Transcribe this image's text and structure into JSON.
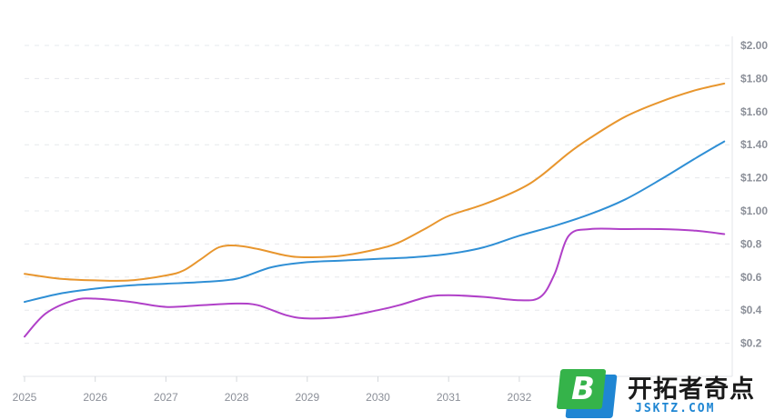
{
  "chart_data": {
    "type": "line",
    "title": "",
    "xlabel": "",
    "ylabel": "",
    "x_ticks": [
      "2025",
      "2026",
      "2027",
      "2028",
      "2029",
      "2030",
      "2031",
      "2032"
    ],
    "xlim": [
      2025,
      2034.9
    ],
    "y_ticks": [
      "$2.00",
      "$1.80",
      "$1.60",
      "$1.40",
      "$1.20",
      "$1.00",
      "$0.8",
      "$0.6",
      "$0.4",
      "$0.2"
    ],
    "ylim": [
      0.0,
      2.0
    ],
    "y_axis_position": "right",
    "grid": "horizontal-dashed",
    "legend": "none",
    "series": [
      {
        "color": "#e8962e",
        "x": [
          2025.0,
          2025.5,
          2026.0,
          2026.5,
          2027.0,
          2027.25,
          2027.5,
          2027.75,
          2028.0,
          2028.3,
          2028.7,
          2029.0,
          2029.5,
          2030.0,
          2030.3,
          2030.7,
          2031.0,
          2031.5,
          2032.0,
          2032.3,
          2032.7,
          2033.0,
          2033.5,
          2034.0,
          2034.5,
          2034.9
        ],
        "values": [
          0.62,
          0.59,
          0.58,
          0.58,
          0.61,
          0.64,
          0.71,
          0.78,
          0.79,
          0.77,
          0.73,
          0.72,
          0.73,
          0.77,
          0.81,
          0.9,
          0.97,
          1.04,
          1.13,
          1.21,
          1.35,
          1.44,
          1.57,
          1.66,
          1.73,
          1.77
        ]
      },
      {
        "color": "#2f8fd5",
        "x": [
          2025.0,
          2025.5,
          2026.0,
          2026.5,
          2027.0,
          2027.5,
          2028.0,
          2028.5,
          2029.0,
          2029.5,
          2030.0,
          2030.5,
          2031.0,
          2031.5,
          2032.0,
          2032.5,
          2033.0,
          2033.5,
          2034.0,
          2034.5,
          2034.9
        ],
        "values": [
          0.45,
          0.5,
          0.53,
          0.55,
          0.56,
          0.57,
          0.59,
          0.66,
          0.69,
          0.7,
          0.71,
          0.72,
          0.74,
          0.78,
          0.85,
          0.91,
          0.98,
          1.07,
          1.19,
          1.32,
          1.42
        ]
      },
      {
        "color": "#b040c8",
        "x": [
          2025.0,
          2025.3,
          2025.7,
          2026.0,
          2026.5,
          2027.0,
          2027.5,
          2028.0,
          2028.3,
          2028.7,
          2029.0,
          2029.5,
          2030.0,
          2030.3,
          2030.7,
          2031.0,
          2031.5,
          2032.0,
          2032.3,
          2032.5,
          2032.7,
          2033.0,
          2033.5,
          2034.0,
          2034.5,
          2034.9
        ],
        "values": [
          0.24,
          0.38,
          0.46,
          0.47,
          0.45,
          0.42,
          0.43,
          0.44,
          0.43,
          0.37,
          0.35,
          0.36,
          0.4,
          0.43,
          0.48,
          0.49,
          0.48,
          0.46,
          0.48,
          0.62,
          0.85,
          0.89,
          0.89,
          0.89,
          0.88,
          0.86
        ]
      }
    ]
  },
  "watermark": {
    "badge_letter": "B",
    "title": "开拓者奇点",
    "subtitle": "JSKTZ.COM",
    "colors": {
      "green": "#35b34a",
      "blue": "#1f86d3"
    }
  }
}
